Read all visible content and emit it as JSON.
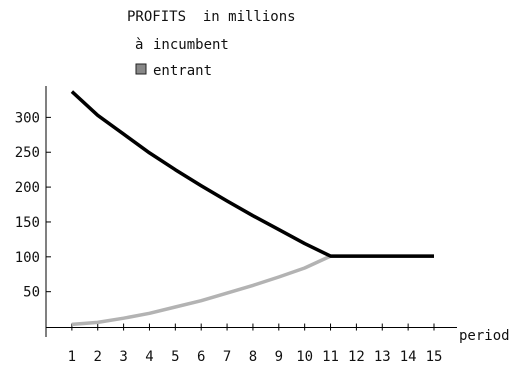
{
  "chart_data": {
    "type": "line",
    "title": "PROFITS  in millions",
    "xlabel": "period",
    "ylabel": "",
    "x": [
      1,
      2,
      3,
      4,
      5,
      6,
      7,
      8,
      9,
      10,
      11,
      12,
      13,
      14,
      15
    ],
    "xlim": [
      0,
      15.3
    ],
    "ylim": [
      -15,
      345
    ],
    "yticks": [
      50,
      100,
      150,
      200,
      250,
      300
    ],
    "grid": false,
    "legend_position": "top-left",
    "series": [
      {
        "name": "incumbent",
        "legend_marker": "à",
        "color": "#000000",
        "values": [
          337,
          303,
          276,
          249,
          225,
          202,
          180,
          159,
          139,
          119,
          101,
          101,
          101,
          101,
          101
        ]
      },
      {
        "name": "entrant",
        "legend_marker": "square",
        "color": "#b3b3b3",
        "values": [
          3,
          6,
          12,
          19,
          28,
          37,
          48,
          59,
          71,
          84,
          101,
          101,
          101,
          101,
          101
        ]
      }
    ]
  }
}
